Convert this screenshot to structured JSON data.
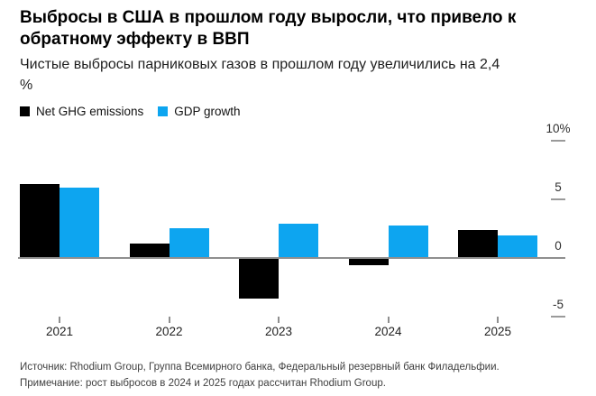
{
  "figure": {
    "title": "Выбросы в США в прошлом году выросли, что привело к\nобратному эффекту в ВВП",
    "subtitle": "Чистые выбросы парниковых газов в прошлом году увеличились на 2,4\n%",
    "source_note": "Источник: Rhodium Group, Группа Всемирного банка, Федеральный резервный банк Филадельфии.",
    "methodology_note": "Примечание: рост выбросов в 2024 и 2025 годах рассчитан Rhodium Group."
  },
  "chart_data": {
    "type": "bar",
    "title": "Выбросы в США в прошлом году выросли, что привело к обратному эффекту в ВВП",
    "subtitle": "Чистые выбросы парниковых газов в прошлом году увеличились на 2,4 %",
    "categories": [
      "2021",
      "2022",
      "2023",
      "2024",
      "2025"
    ],
    "series": [
      {
        "name": "Net GHG emissions",
        "color": "#000000",
        "values": [
          6.3,
          1.2,
          -3.4,
          -0.5,
          2.4
        ]
      },
      {
        "name": "GDP growth",
        "color": "#0da5f0",
        "values": [
          6.0,
          2.5,
          2.9,
          2.8,
          1.9
        ]
      }
    ],
    "unit": "%",
    "ylim": [
      -6.5,
      10.5
    ],
    "yticks": [
      {
        "value": 10,
        "label": "10%"
      },
      {
        "value": 5,
        "label": "5"
      },
      {
        "value": 0,
        "label": "0"
      },
      {
        "value": -5,
        "label": "-5"
      }
    ],
    "grid": false,
    "legend_position": "top-left",
    "y_axis_side": "right"
  },
  "colors": {
    "bar_black": "#000000",
    "accent_blue": "#0da5f0",
    "axis_line": "#8f8f8f",
    "text_footer": "#3f3f3f"
  }
}
